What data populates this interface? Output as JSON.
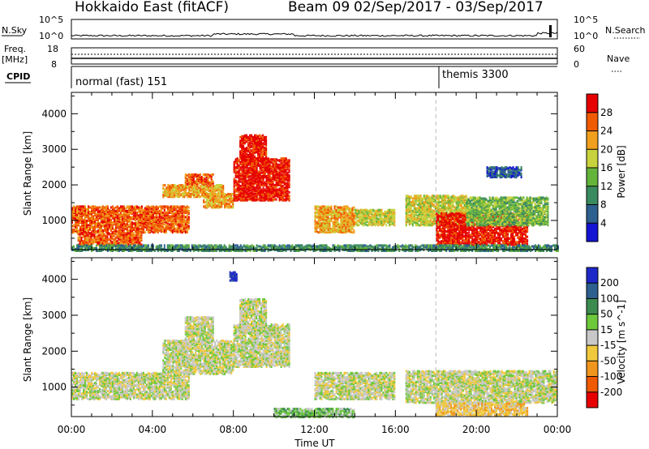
{
  "header": {
    "station": "Hokkaido East (fitACF)",
    "beam": "Beam 09",
    "date_range": "02/Sep/2017 - 03/Sep/2017"
  },
  "side_labels": {
    "nsky": "N.Sky",
    "nsearch": "N.Search",
    "freq": "Freq.",
    "freq_unit": "[MHz]",
    "nave": "Nave",
    "cpid": "CPID"
  },
  "noise_axis": {
    "left_top": "10^5",
    "left_bottom": "10^0",
    "right_top": "10^5",
    "right_bottom": "10^0"
  },
  "freq_axis": {
    "left_top": "18",
    "left_bottom": "8",
    "right_top": "60",
    "right_bottom": "0"
  },
  "cpid_labels": [
    {
      "label": "normal (fast) 151",
      "start_hour": 0
    },
    {
      "label": "themis 3300",
      "start_hour": 18
    }
  ],
  "chart_data": [
    {
      "type": "heatmap",
      "quantity": "Power",
      "ylabel": "Slant Range [km]",
      "xlabel": "Time UT",
      "x_ticks": [
        "00:00",
        "04:00",
        "08:00",
        "12:00",
        "16:00",
        "20:00",
        "00:00"
      ],
      "y_ticks": [
        "1000",
        "2000",
        "3000",
        "4000"
      ],
      "xlim_hours": [
        0,
        24
      ],
      "ylim_km": [
        180,
        4600
      ],
      "colorbar_label": "Power [dB]",
      "colorbar_ticks": [
        "4",
        "8",
        "12",
        "16",
        "20",
        "24",
        "28"
      ],
      "colorbar_colors": [
        "#1414d2",
        "#2d5f8f",
        "#3a8a5f",
        "#64b43c",
        "#c8d23c",
        "#f0a01e",
        "#f05a00",
        "#e60000"
      ],
      "regions": [
        {
          "t0": 0.0,
          "t1": 5.8,
          "r0": 700,
          "r1": 1450,
          "level": 6
        },
        {
          "t0": 0.3,
          "t1": 3.5,
          "r0": 350,
          "r1": 700,
          "level": 6
        },
        {
          "t0": 4.5,
          "t1": 7.5,
          "r0": 1700,
          "r1": 2050,
          "level": 5
        },
        {
          "t0": 5.6,
          "t1": 7.0,
          "r0": 2050,
          "r1": 2350,
          "level": 6
        },
        {
          "t0": 6.5,
          "t1": 8.0,
          "r0": 1400,
          "r1": 1800,
          "level": 5
        },
        {
          "t0": 8.0,
          "t1": 10.8,
          "r0": 1600,
          "r1": 2800,
          "level": 7
        },
        {
          "t0": 8.3,
          "t1": 9.6,
          "r0": 2600,
          "r1": 3450,
          "level": 7
        },
        {
          "t0": 12.0,
          "t1": 14.0,
          "r0": 700,
          "r1": 1450,
          "level": 5
        },
        {
          "t0": 14.0,
          "t1": 16.0,
          "r0": 900,
          "r1": 1350,
          "level": 4
        },
        {
          "t0": 16.5,
          "t1": 19.5,
          "r0": 900,
          "r1": 1750,
          "level": 4
        },
        {
          "t0": 18.0,
          "t1": 22.5,
          "r0": 350,
          "r1": 1250,
          "level": 7
        },
        {
          "t0": 19.5,
          "t1": 23.5,
          "r0": 900,
          "r1": 1700,
          "level": 3
        },
        {
          "t0": 20.5,
          "t1": 22.2,
          "r0": 2250,
          "r1": 2550,
          "level": 1
        },
        {
          "t0": 0.0,
          "t1": 24.0,
          "r0": 180,
          "r1": 350,
          "level": 2
        }
      ]
    },
    {
      "type": "heatmap",
      "quantity": "Velocity",
      "ylabel": "Slant Range [km]",
      "xlabel": "Time UT",
      "x_ticks": [
        "00:00",
        "04:00",
        "08:00",
        "12:00",
        "16:00",
        "20:00",
        "00:00"
      ],
      "y_ticks": [
        "1000",
        "2000",
        "3000",
        "4000"
      ],
      "xlim_hours": [
        0,
        24
      ],
      "ylim_km": [
        180,
        4600
      ],
      "colorbar_label": "Velocity [m s^-1]",
      "colorbar_ticks": [
        "200",
        "100",
        "50",
        "15",
        "-15",
        "-50",
        "-100",
        "-200"
      ],
      "colorbar_colors": [
        "#1e28c8",
        "#2d5f8f",
        "#3c8c50",
        "#6ec83c",
        "#c8c8c8",
        "#f0c83c",
        "#f0961e",
        "#f05a00",
        "#e60000"
      ],
      "regions": [
        {
          "t0": 0.0,
          "t1": 5.8,
          "r0": 700,
          "r1": 1450,
          "level": 4
        },
        {
          "t0": 4.5,
          "t1": 8.0,
          "r0": 1400,
          "r1": 2350,
          "level": 4
        },
        {
          "t0": 5.6,
          "t1": 7.0,
          "r0": 2350,
          "r1": 3000,
          "level": 4
        },
        {
          "t0": 8.0,
          "t1": 10.8,
          "r0": 1600,
          "r1": 2800,
          "level": 4
        },
        {
          "t0": 8.3,
          "t1": 9.6,
          "r0": 2600,
          "r1": 3500,
          "level": 4
        },
        {
          "t0": 12.0,
          "t1": 16.0,
          "r0": 700,
          "r1": 1450,
          "level": 4
        },
        {
          "t0": 16.5,
          "t1": 24.0,
          "r0": 600,
          "r1": 1500,
          "level": 4
        },
        {
          "t0": 18.0,
          "t1": 22.5,
          "r0": 250,
          "r1": 600,
          "level": 5
        },
        {
          "t0": 10.0,
          "t1": 14.0,
          "r0": 200,
          "r1": 450,
          "level": 3
        },
        {
          "t0": 7.8,
          "t1": 8.2,
          "r0": 4000,
          "r1": 4250,
          "level": 0
        }
      ]
    }
  ]
}
